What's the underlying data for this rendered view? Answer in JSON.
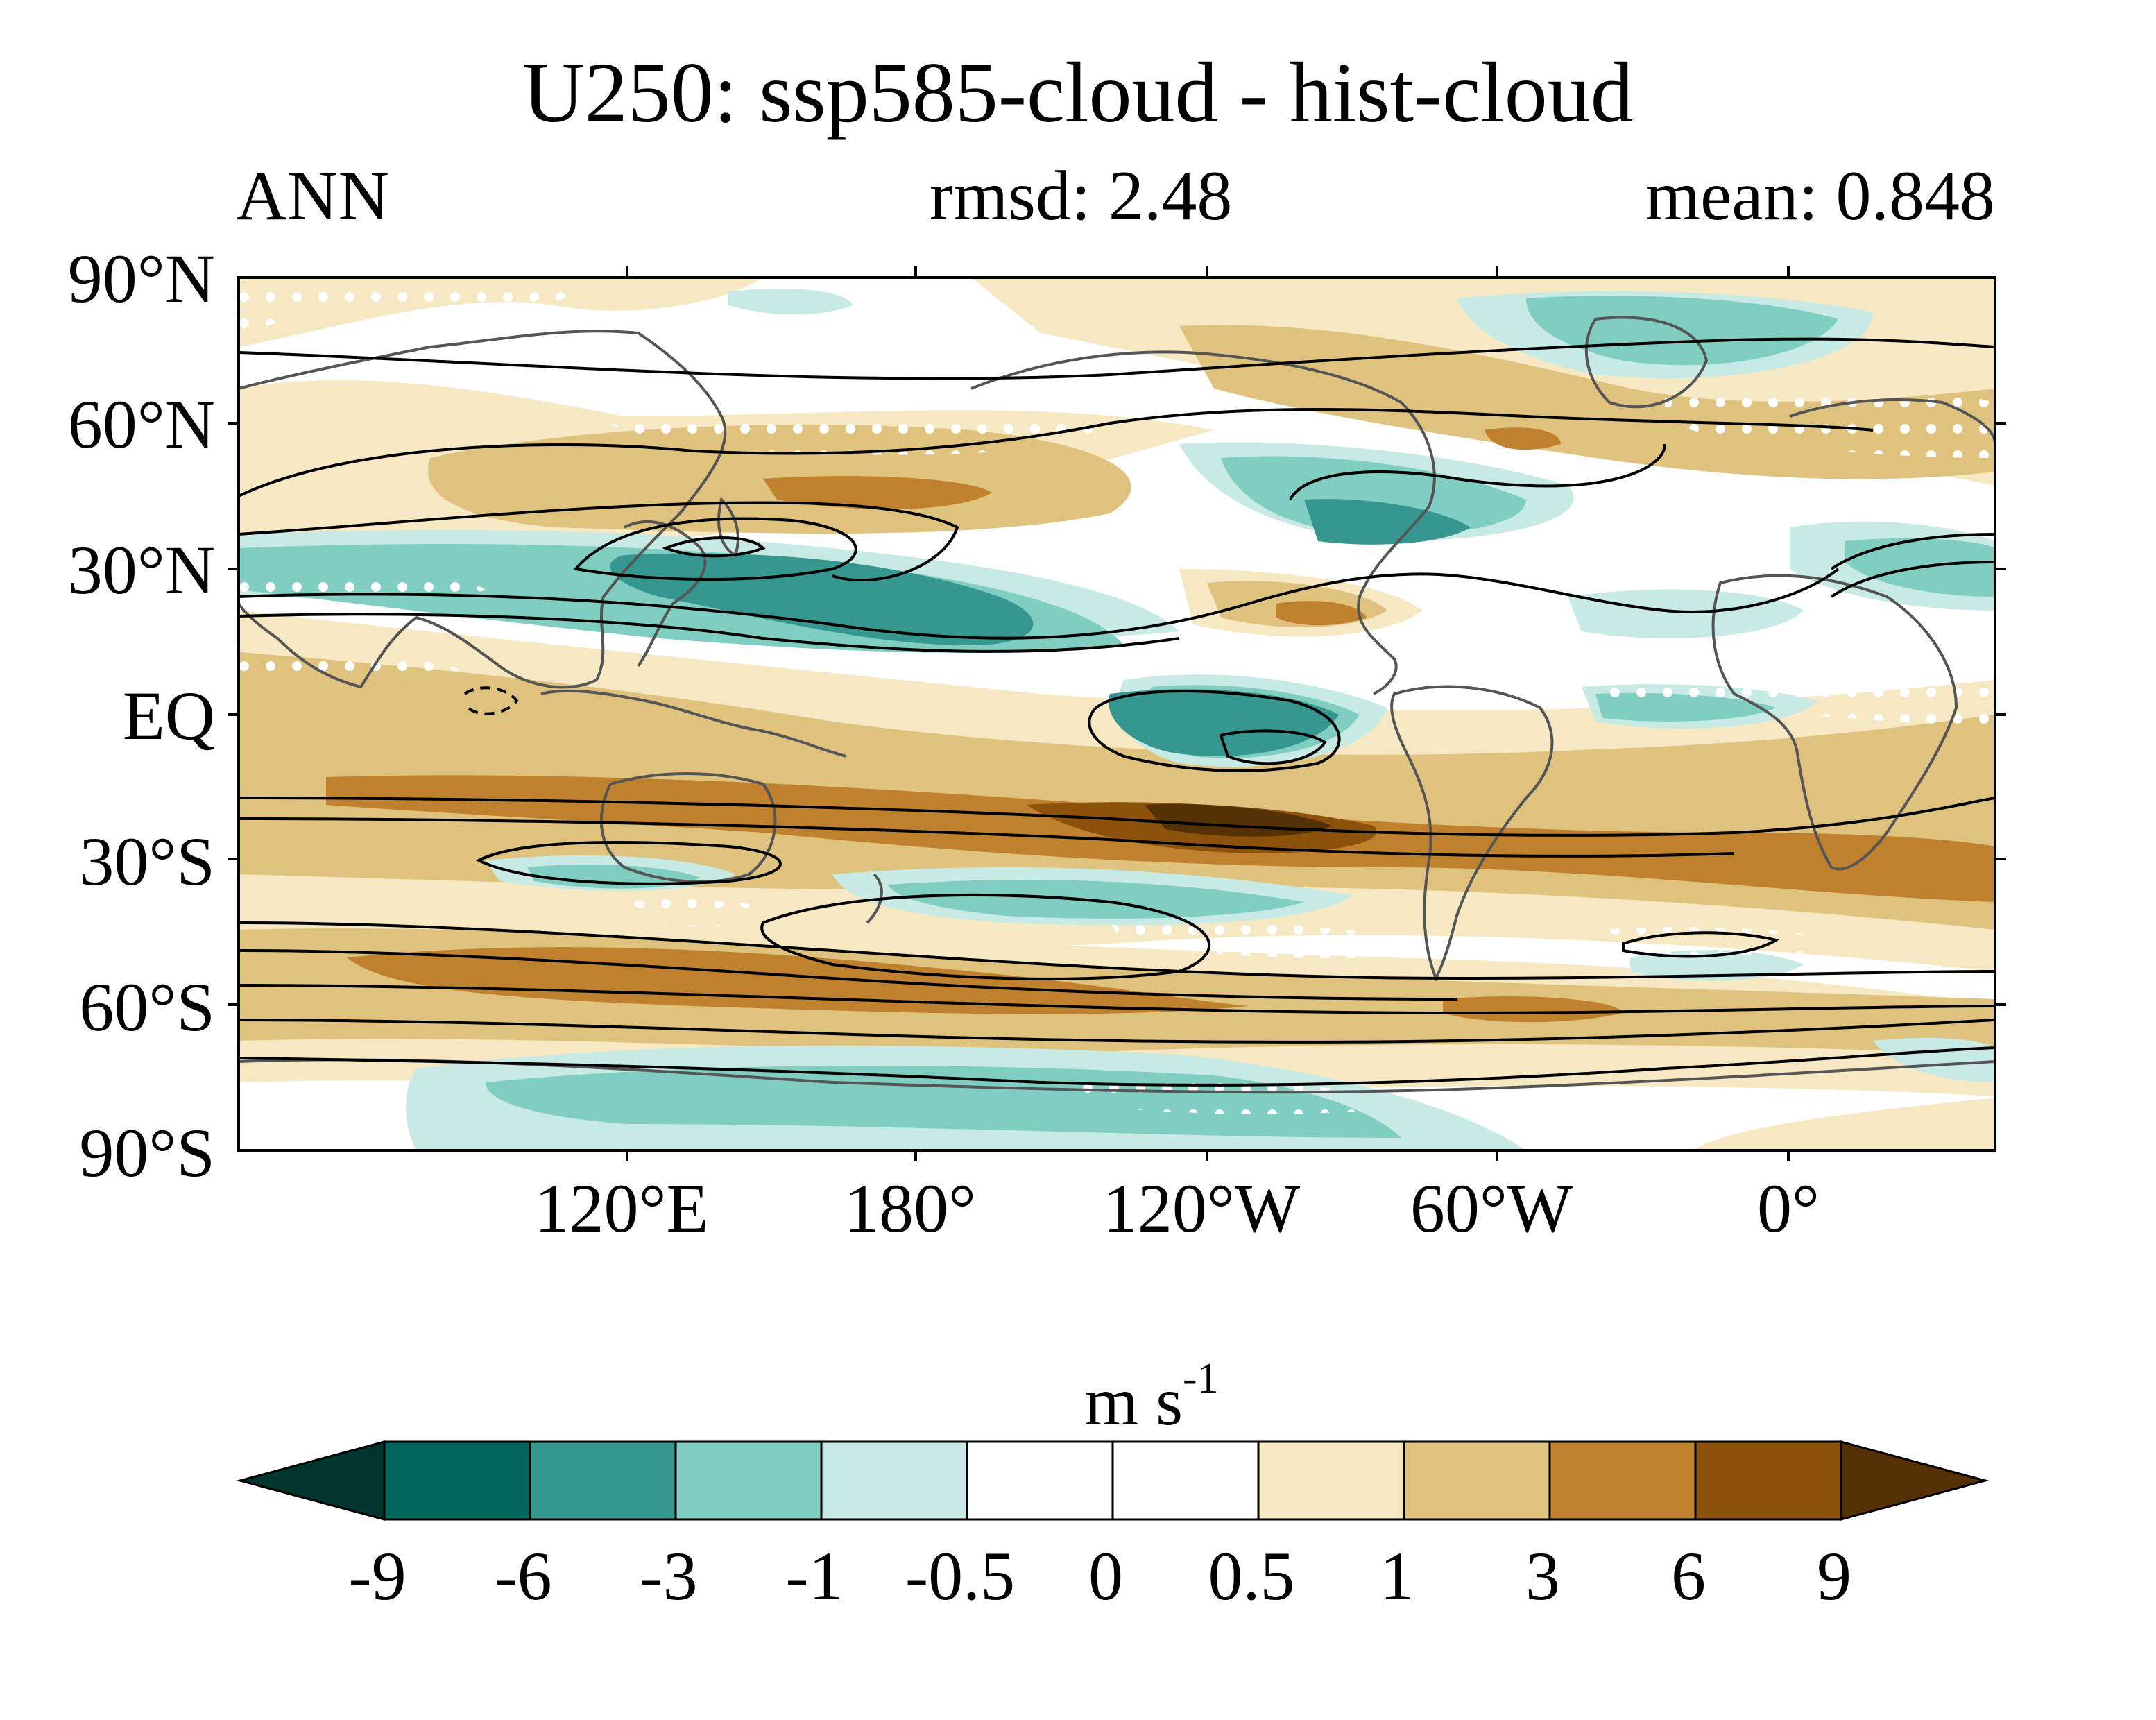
{
  "title": "U250: ssp585-cloud - hist-cloud",
  "season": "ANN",
  "rmsd": "rmsd: 2.48",
  "mean": "mean: 0.848",
  "lat_labels": [
    "90°N",
    "60°N",
    "30°N",
    "EQ",
    "30°S",
    "60°S",
    "90°S"
  ],
  "lon_labels": [
    "120°E",
    "180°",
    "120°W",
    "60°W",
    "0°"
  ],
  "colorbar": {
    "units": "m s",
    "units_exponent": "-1",
    "ticks": [
      "-9",
      "-6",
      "-3",
      "-1",
      "-0.5",
      "0",
      "0.5",
      "1",
      "3",
      "6",
      "9"
    ],
    "colors": [
      "#00362f",
      "#01665e",
      "#35978f",
      "#80cdc1",
      "#c7eae5",
      "#ffffff",
      "#ffffff",
      "#f6e8c3",
      "#dfc27d",
      "#bf812d",
      "#8c510a",
      "#543005"
    ]
  }
}
